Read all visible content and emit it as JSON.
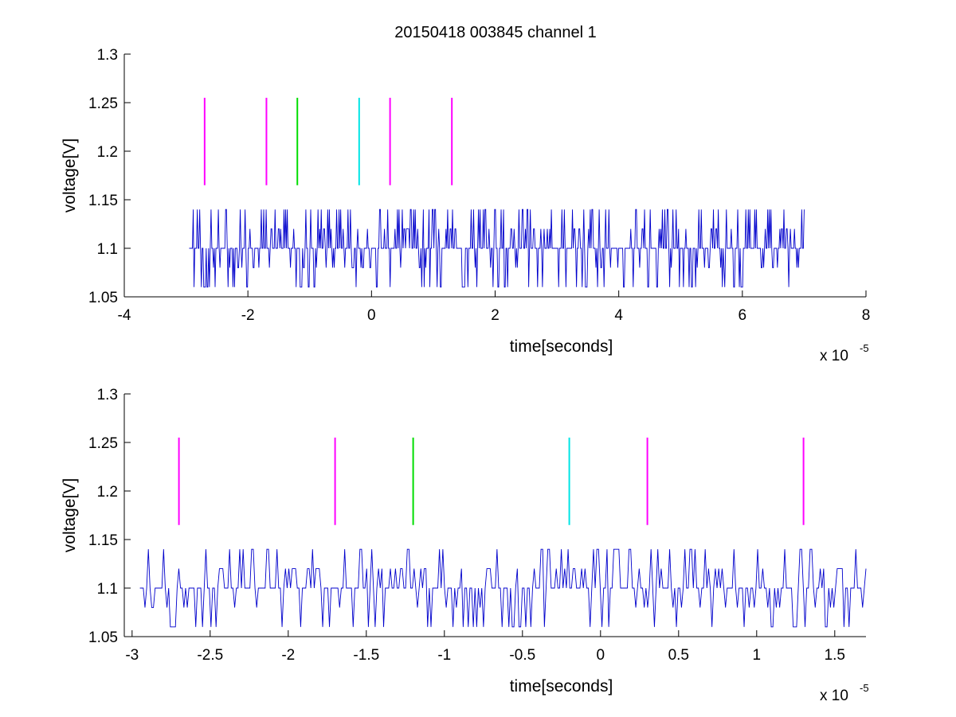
{
  "figure": {
    "title": "20150418 003845 channel 1"
  },
  "chart_data": [
    {
      "type": "line",
      "xlabel": "time[seconds]",
      "ylabel": "voltage[V]",
      "x_exponent_label": "x 10",
      "x_exponent": "-5",
      "xlim": [
        -4,
        8
      ],
      "ylim": [
        1.05,
        1.3
      ],
      "xticks": [
        -4,
        -2,
        0,
        2,
        4,
        6,
        8
      ],
      "xtick_labels": [
        "-4",
        "-2",
        "0",
        "2",
        "4",
        "6",
        "8"
      ],
      "yticks": [
        1.05,
        1.1,
        1.15,
        1.2,
        1.25,
        1.3
      ],
      "ytick_labels": [
        "1.05",
        "1.1",
        "1.15",
        "1.2",
        "1.25",
        "1.3"
      ],
      "signal": {
        "color": "#0000cc",
        "x_range": [
          -2.95,
          7.0
        ],
        "baseline": 1.1,
        "levels": [
          1.06,
          1.08,
          1.1,
          1.12,
          1.14
        ]
      },
      "markers": [
        {
          "x": -2.7,
          "color": "#ff00ff",
          "y_range": [
            1.165,
            1.255
          ]
        },
        {
          "x": -1.7,
          "color": "#ff00ff",
          "y_range": [
            1.165,
            1.255
          ]
        },
        {
          "x": -1.2,
          "color": "#00dd00",
          "y_range": [
            1.165,
            1.255
          ]
        },
        {
          "x": -0.2,
          "color": "#00e5e5",
          "y_range": [
            1.165,
            1.255
          ]
        },
        {
          "x": 0.3,
          "color": "#ff00ff",
          "y_range": [
            1.165,
            1.255
          ]
        },
        {
          "x": 1.3,
          "color": "#ff00ff",
          "y_range": [
            1.165,
            1.255
          ]
        }
      ]
    },
    {
      "type": "line",
      "xlabel": "time[seconds]",
      "ylabel": "voltage[V]",
      "x_exponent_label": "x 10",
      "x_exponent": "-5",
      "xlim": [
        -3.05,
        1.7
      ],
      "ylim": [
        1.05,
        1.3
      ],
      "xticks": [
        -3,
        -2.5,
        -2,
        -1.5,
        -1,
        -0.5,
        0,
        0.5,
        1,
        1.5
      ],
      "xtick_labels": [
        "-3",
        "-2.5",
        "-2",
        "-1.5",
        "-1",
        "-0.5",
        "0",
        "0.5",
        "1",
        "1.5"
      ],
      "yticks": [
        1.05,
        1.1,
        1.15,
        1.2,
        1.25,
        1.3
      ],
      "ytick_labels": [
        "1.05",
        "1.1",
        "1.15",
        "1.2",
        "1.25",
        "1.3"
      ],
      "signal": {
        "color": "#0000cc",
        "x_range": [
          -2.95,
          1.7
        ],
        "baseline": 1.1,
        "levels": [
          1.06,
          1.08,
          1.1,
          1.12,
          1.14
        ]
      },
      "markers": [
        {
          "x": -2.7,
          "color": "#ff00ff",
          "y_range": [
            1.165,
            1.255
          ]
        },
        {
          "x": -1.7,
          "color": "#ff00ff",
          "y_range": [
            1.165,
            1.255
          ]
        },
        {
          "x": -1.2,
          "color": "#00dd00",
          "y_range": [
            1.165,
            1.255
          ]
        },
        {
          "x": -0.2,
          "color": "#00e5e5",
          "y_range": [
            1.165,
            1.255
          ]
        },
        {
          "x": 0.3,
          "color": "#ff00ff",
          "y_range": [
            1.165,
            1.255
          ]
        },
        {
          "x": 1.3,
          "color": "#ff00ff",
          "y_range": [
            1.165,
            1.255
          ]
        }
      ]
    }
  ]
}
